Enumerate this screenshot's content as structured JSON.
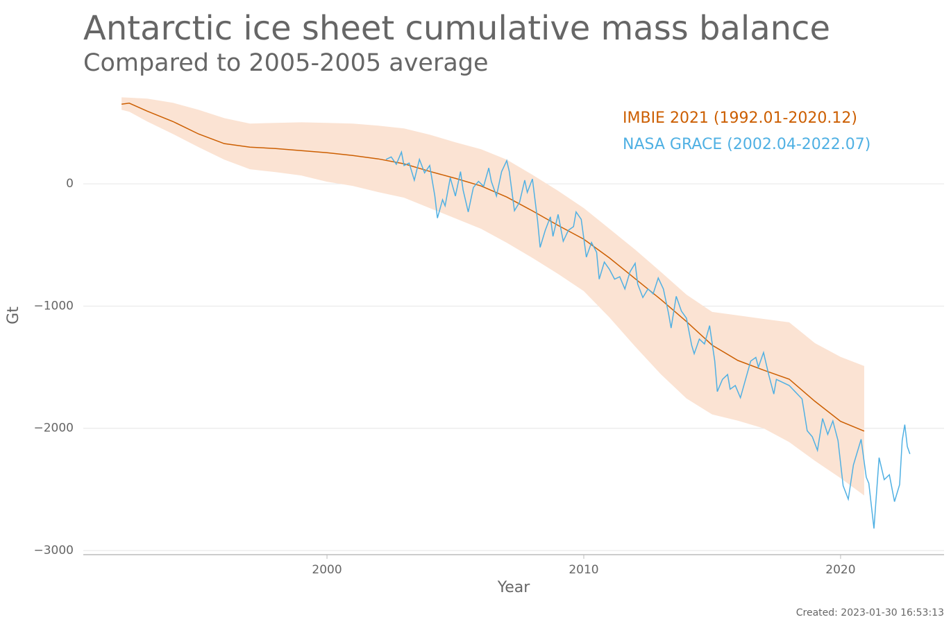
{
  "chart_data": {
    "type": "line",
    "title": "Antarctic ice sheet cumulative mass balance",
    "subtitle": "Compared to 2005-2005 average",
    "x_label": "Year",
    "y_label": "Gt",
    "footnote": "Created: 2023-01-30 16:53:13",
    "xlim": [
      1990.51,
      2024.03
    ],
    "xticks": [
      2000,
      2010,
      2020
    ],
    "ylim": [
      -3034,
      710
    ],
    "yticks": [
      {
        "value": -3000,
        "label": "−3000"
      },
      {
        "value": -2000,
        "label": "−2000"
      },
      {
        "value": -1000,
        "label": "−1000"
      },
      0
    ],
    "grid": true,
    "legend": "upper right",
    "series": [
      {
        "name": "IMBIE 2021 (1992.01-2020.12)",
        "color": "#cc5e00",
        "band_color": "#fbe3d3",
        "x": [
          1992,
          1992.3,
          1993,
          1994,
          1995,
          1996,
          1997,
          1998,
          1999,
          2000,
          2001,
          2002,
          2003,
          2004,
          2005,
          2006,
          2007,
          2008,
          2009,
          2010,
          2011,
          2012,
          2013,
          2014,
          2015,
          2016,
          2017,
          2018,
          2019,
          2020,
          2020.92
        ],
        "values": [
          652,
          660,
          595,
          510,
          408,
          329,
          300,
          289,
          272,
          255,
          232,
          204,
          164,
          102,
          45,
          -17,
          -108,
          -221,
          -340,
          -453,
          -606,
          -776,
          -946,
          -1127,
          -1320,
          -1445,
          -1524,
          -1598,
          -1779,
          -1943,
          -2023
        ],
        "upper": [
          708,
          705,
          697,
          663,
          606,
          538,
          493,
          499,
          504,
          499,
          493,
          476,
          453,
          402,
          340,
          283,
          198,
          74,
          -57,
          -198,
          -368,
          -538,
          -720,
          -907,
          -1048,
          -1076,
          -1105,
          -1133,
          -1303,
          -1416,
          -1490
        ],
        "lower": [
          606,
          590,
          510,
          408,
          300,
          198,
          119,
          96,
          68,
          17,
          -17,
          -68,
          -113,
          -198,
          -283,
          -368,
          -482,
          -606,
          -737,
          -878,
          -1093,
          -1331,
          -1558,
          -1756,
          -1887,
          -1938,
          -2000,
          -2113,
          -2266,
          -2408,
          -2550
        ]
      },
      {
        "name": "NASA GRACE (2002.04-2022.07)",
        "color": "#4fb0e3",
        "x": [
          2002.3,
          2002.5,
          2002.7,
          2002.9,
          2003.0,
          2003.2,
          2003.4,
          2003.6,
          2003.8,
          2004.0,
          2004.2,
          2004.3,
          2004.5,
          2004.6,
          2004.8,
          2005.0,
          2005.2,
          2005.3,
          2005.5,
          2005.7,
          2005.9,
          2006.1,
          2006.3,
          2006.4,
          2006.6,
          2006.8,
          2007.0,
          2007.1,
          2007.3,
          2007.5,
          2007.7,
          2007.8,
          2008.0,
          2008.2,
          2008.3,
          2008.5,
          2008.7,
          2008.8,
          2009.0,
          2009.2,
          2009.4,
          2009.6,
          2009.7,
          2009.9,
          2010.1,
          2010.3,
          2010.5,
          2010.6,
          2010.8,
          2011.0,
          2011.2,
          2011.4,
          2011.6,
          2011.8,
          2012.0,
          2012.1,
          2012.3,
          2012.5,
          2012.7,
          2012.9,
          2013.1,
          2013.3,
          2013.4,
          2013.6,
          2013.8,
          2014.0,
          2014.2,
          2014.3,
          2014.5,
          2014.7,
          2014.9,
          2015.1,
          2015.2,
          2015.4,
          2015.6,
          2015.7,
          2015.9,
          2016.1,
          2016.3,
          2016.5,
          2016.7,
          2016.8,
          2017.0,
          2017.2,
          2017.4,
          2017.5,
          2018.0,
          2018.5,
          2018.7,
          2018.9,
          2019.1,
          2019.3,
          2019.5,
          2019.7,
          2019.9,
          2020.1,
          2020.3,
          2020.5,
          2020.8,
          2021.0,
          2021.1,
          2021.3,
          2021.5,
          2021.7,
          2021.9,
          2022.1,
          2022.3,
          2022.4,
          2022.5,
          2022.6,
          2022.7
        ],
        "values": [
          200,
          220,
          160,
          260,
          150,
          170,
          30,
          200,
          90,
          150,
          -100,
          -280,
          -130,
          -180,
          50,
          -100,
          100,
          -50,
          -230,
          -30,
          20,
          -20,
          130,
          20,
          -100,
          100,
          190,
          100,
          -220,
          -150,
          30,
          -70,
          40,
          -300,
          -520,
          -380,
          -270,
          -430,
          -250,
          -470,
          -380,
          -350,
          -230,
          -290,
          -600,
          -480,
          -560,
          -780,
          -640,
          -700,
          -780,
          -760,
          -860,
          -720,
          -650,
          -820,
          -930,
          -860,
          -900,
          -770,
          -860,
          -1060,
          -1180,
          -920,
          -1040,
          -1100,
          -1320,
          -1390,
          -1270,
          -1310,
          -1160,
          -1450,
          -1700,
          -1600,
          -1560,
          -1680,
          -1650,
          -1750,
          -1600,
          -1450,
          -1420,
          -1500,
          -1380,
          -1560,
          -1720,
          -1600,
          -1650,
          -1760,
          -2020,
          -2070,
          -2180,
          -1920,
          -2050,
          -1940,
          -2100,
          -2470,
          -2580,
          -2300,
          -2090,
          -2400,
          -2450,
          -2820,
          -2240,
          -2420,
          -2380,
          -2600,
          -2460,
          -2100,
          -1970,
          -2150,
          -2210
        ]
      }
    ]
  }
}
